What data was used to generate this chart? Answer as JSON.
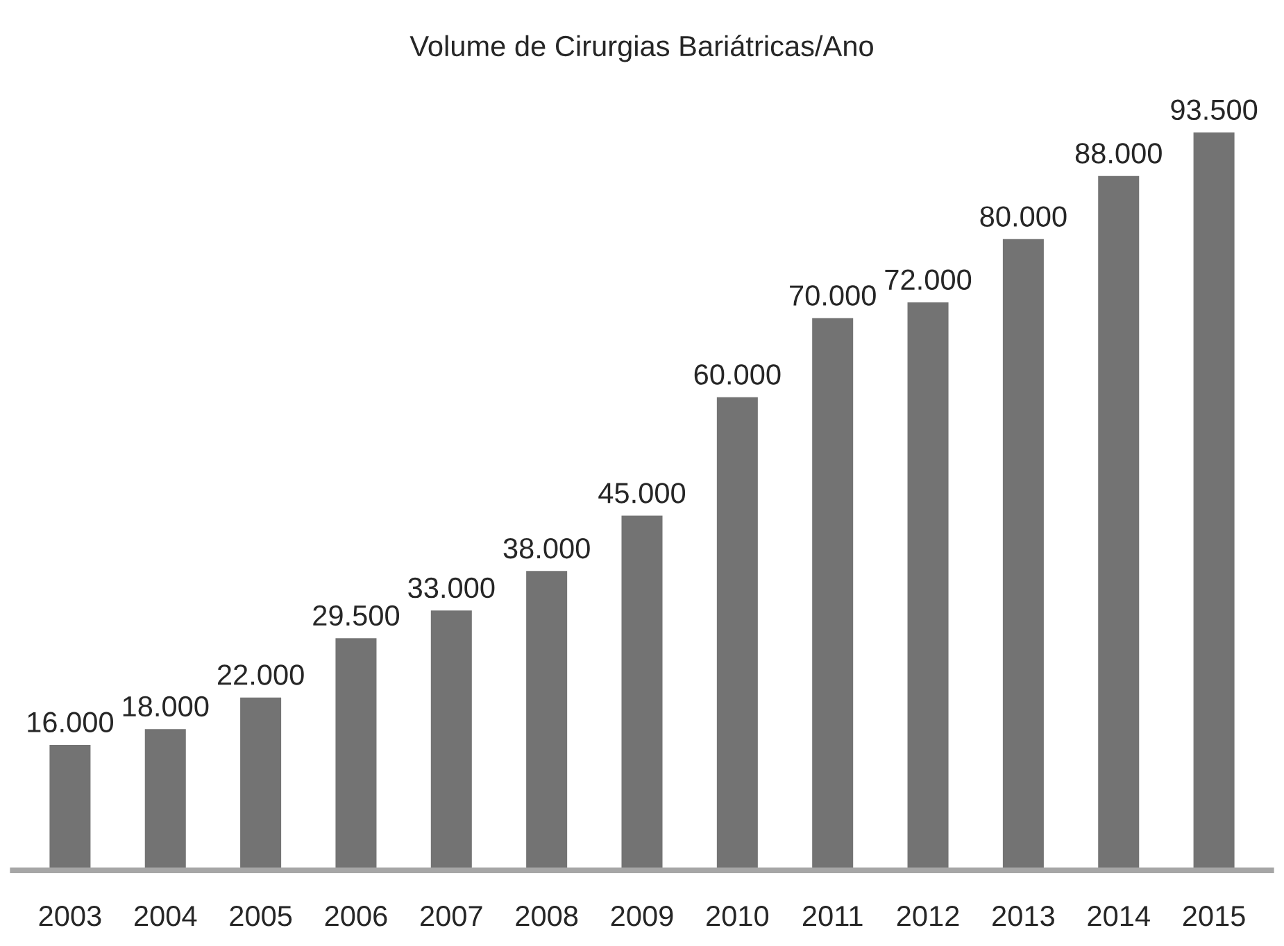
{
  "chart_data": {
    "type": "bar",
    "title": "Volume de Cirurgias Bariátricas/Ano",
    "categories": [
      "2003",
      "2004",
      "2005",
      "2006",
      "2007",
      "2008",
      "2009",
      "2010",
      "2011",
      "2012",
      "2013",
      "2014",
      "2015"
    ],
    "values": [
      16000,
      18000,
      22000,
      29500,
      33000,
      38000,
      45000,
      60000,
      70000,
      72000,
      80000,
      88000,
      93500
    ],
    "value_labels": [
      "16.000",
      "18.000",
      "22.000",
      "29.500",
      "33.000",
      "38.000",
      "45.000",
      "60.000",
      "70.000",
      "72.000",
      "80.000",
      "88.000",
      "93.500"
    ],
    "color": "#737373",
    "tick_labels": "x",
    "grid": false,
    "legend": false
  }
}
